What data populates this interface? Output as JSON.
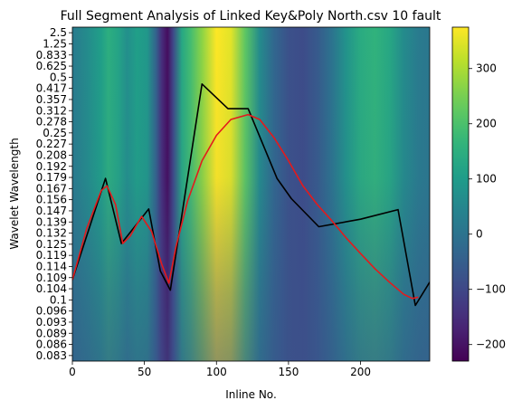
{
  "chart_data": {
    "type": "heatmap",
    "title": "Full Segment Analysis of Linked Key&Poly North.csv 10 fault",
    "xlabel": "Inline No.",
    "ylabel": "Wavelet Wavelength",
    "xlim": [
      0,
      248
    ],
    "x_ticks": [
      0,
      50,
      100,
      150,
      200
    ],
    "y_tick_labels": [
      "2.5",
      "1.25",
      "0.833",
      "0.625",
      "0.5",
      "0.417",
      "0.357",
      "0.312",
      "0.278",
      "0.25",
      "0.227",
      "0.208",
      "0.192",
      "0.179",
      "0.167",
      "0.156",
      "0.147",
      "0.139",
      "0.132",
      "0.125",
      "0.119",
      "0.114",
      "0.109",
      "0.104",
      "0.1",
      "0.096",
      "0.093",
      "0.089",
      "0.086",
      "0.083"
    ],
    "colormap": "viridis",
    "colorbar": {
      "min": -230,
      "max": 375,
      "ticks": [
        -200,
        -100,
        0,
        100,
        200,
        300
      ]
    },
    "heat_profile": {
      "x": [
        0,
        10,
        20,
        25,
        32,
        38,
        45,
        52,
        58,
        62,
        66,
        70,
        76,
        82,
        90,
        100,
        110,
        120,
        130,
        140,
        150,
        160,
        170,
        180,
        190,
        200,
        210,
        220,
        230,
        240,
        248
      ],
      "value": [
        20,
        60,
        110,
        150,
        120,
        70,
        110,
        90,
        -40,
        -150,
        -210,
        -100,
        130,
        190,
        270,
        375,
        350,
        220,
        60,
        -30,
        -80,
        -90,
        -60,
        0,
        80,
        140,
        160,
        130,
        60,
        20,
        10
      ]
    },
    "series": [
      {
        "color": "#000000",
        "x": [
          0,
          23,
          34,
          53,
          61,
          68,
          90,
          108,
          122,
          142,
          152,
          171,
          200,
          226,
          238,
          248
        ],
        "y": [
          0.108,
          0.178,
          0.1255,
          0.1485,
          0.112,
          0.1035,
          0.45,
          0.32,
          0.32,
          0.178,
          0.157,
          0.136,
          0.141,
          0.148,
          0.098,
          0.107
        ]
      },
      {
        "color": "#e41a1c",
        "x": [
          0,
          10,
          20,
          24,
          30,
          35,
          40,
          48,
          55,
          62,
          67,
          72,
          80,
          90,
          100,
          110,
          122,
          130,
          140,
          150,
          160,
          170,
          180,
          190,
          200,
          210,
          220,
          230,
          236,
          240
        ],
        "y": [
          0.108,
          0.135,
          0.165,
          0.17,
          0.152,
          0.1255,
          0.13,
          0.143,
          0.133,
          0.115,
          0.1065,
          0.124,
          0.155,
          0.2,
          0.245,
          0.285,
          0.3,
          0.285,
          0.24,
          0.2,
          0.17,
          0.152,
          0.14,
          0.129,
          0.12,
          0.113,
          0.107,
          0.102,
          0.1005,
          0.101
        ]
      }
    ]
  }
}
